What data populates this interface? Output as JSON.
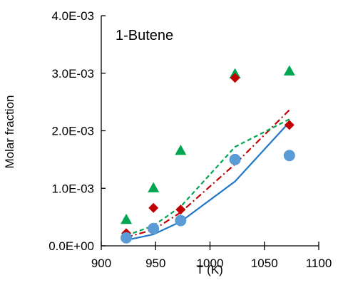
{
  "chart_data": {
    "type": "scatter",
    "title": "1-Butene",
    "xlabel": "T (K)",
    "ylabel": "Molar fraction",
    "xlim": [
      900,
      1100
    ],
    "ylim": [
      0,
      0.004
    ],
    "grid": false,
    "x_ticks": [
      {
        "value": 900,
        "label": "900"
      },
      {
        "value": 950,
        "label": "950"
      },
      {
        "value": 1000,
        "label": "1000"
      },
      {
        "value": 1050,
        "label": "1050"
      },
      {
        "value": 1100,
        "label": "1100"
      }
    ],
    "y_ticks": [
      {
        "value": 0,
        "label": "0.0E+00"
      },
      {
        "value": 0.001,
        "label": "1.0E-03"
      },
      {
        "value": 0.002,
        "label": "2.0E-03"
      },
      {
        "value": 0.003,
        "label": "3.0E-03"
      },
      {
        "value": 0.004,
        "label": "4.0E-03"
      }
    ],
    "series": [
      {
        "kind": "markers",
        "marker": "triangle",
        "color": "#00a651",
        "points": [
          [
            923,
            0.00046
          ],
          [
            948,
            0.00101
          ],
          [
            973,
            0.00166
          ],
          [
            1023,
            0.00299
          ],
          [
            1073,
            0.00304
          ]
        ]
      },
      {
        "kind": "markers",
        "marker": "diamond",
        "color": "#c00000",
        "points": [
          [
            923,
            0.00022
          ],
          [
            948,
            0.00066
          ],
          [
            973,
            0.00063
          ],
          [
            1023,
            0.00292
          ],
          [
            1073,
            0.0021
          ]
        ]
      },
      {
        "kind": "markers",
        "marker": "circle",
        "color": "#5b9bd5",
        "points": [
          [
            923,
            0.00014
          ],
          [
            948,
            0.0003
          ],
          [
            973,
            0.00044
          ],
          [
            1023,
            0.0015
          ],
          [
            1073,
            0.00157
          ]
        ]
      },
      {
        "kind": "line",
        "style": "solid",
        "color": "#1f77c8",
        "points": [
          [
            923,
            0.0001
          ],
          [
            948,
            0.0002
          ],
          [
            973,
            0.00042
          ],
          [
            1023,
            0.00112
          ],
          [
            1073,
            0.00215
          ]
        ]
      },
      {
        "kind": "line",
        "style": "dashdot",
        "color": "#c00000",
        "points": [
          [
            923,
            0.00015
          ],
          [
            948,
            0.00028
          ],
          [
            973,
            0.00058
          ],
          [
            1023,
            0.00142
          ],
          [
            1073,
            0.00236
          ]
        ]
      },
      {
        "kind": "line",
        "style": "dashed",
        "color": "#00a651",
        "points": [
          [
            923,
            0.00018
          ],
          [
            948,
            0.00035
          ],
          [
            973,
            0.00068
          ],
          [
            1023,
            0.00172
          ],
          [
            1073,
            0.0022
          ]
        ]
      }
    ]
  }
}
